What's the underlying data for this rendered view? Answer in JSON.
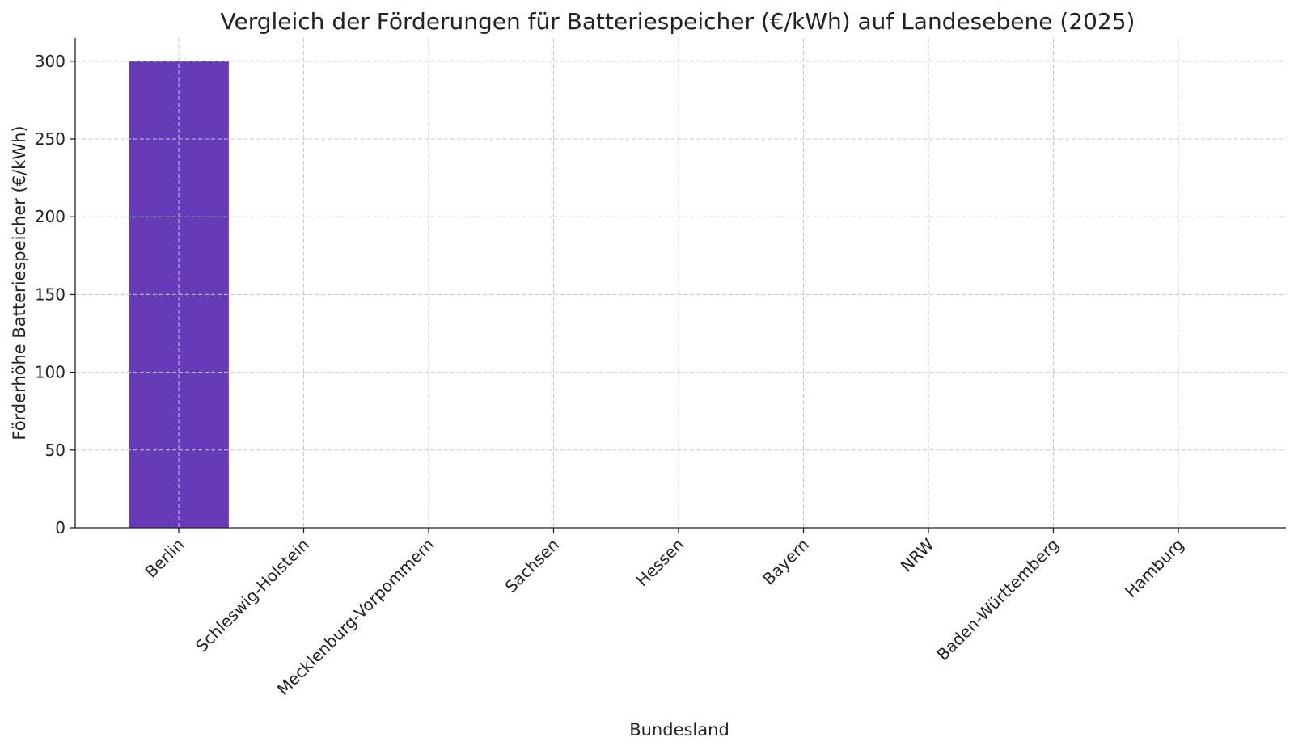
{
  "chart_data": {
    "type": "bar",
    "title": "Vergleich der Förderungen für Batteriespeicher (€/kWh) auf Landesebene (2025)",
    "xlabel": "Bundesland",
    "ylabel": "Förderhöhe Batteriespeicher (€/kWh)",
    "categories": [
      "Berlin",
      "Schleswig-Holstein",
      "Mecklenburg-Vorpommern",
      "Sachsen",
      "Hessen",
      "Bayern",
      "NRW",
      "Baden-Württemberg",
      "Hamburg"
    ],
    "values": [
      300,
      0,
      0,
      0,
      0,
      0,
      0,
      0,
      0
    ],
    "ylim": [
      0,
      315
    ],
    "yticks": [
      0,
      50,
      100,
      150,
      200,
      250,
      300
    ],
    "grid": true,
    "bar_color": "#673ab7"
  }
}
